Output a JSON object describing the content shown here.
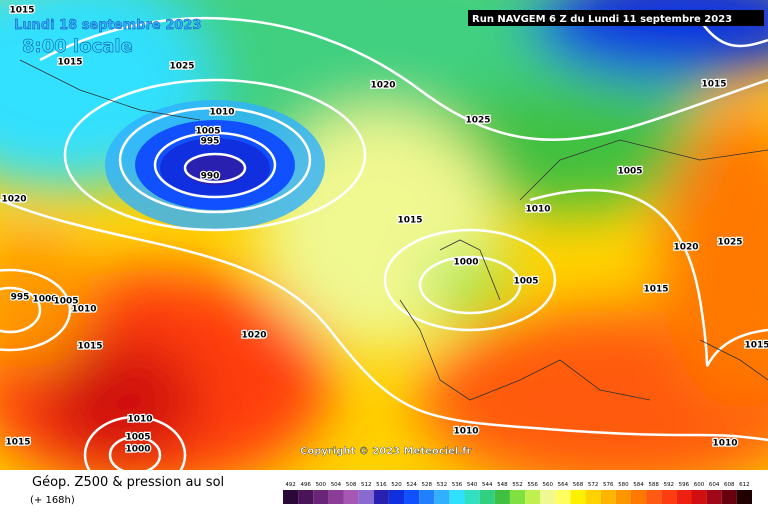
{
  "header": {
    "date": "Lundi 18 septembre 2023",
    "time": "8:00 locale",
    "run": "Run NAVGEM 6 Z du Lundi 11 septembre 2023"
  },
  "copyright": "Copyright © 2023 Meteociel.fr",
  "footer": {
    "title": "Géop. Z500 & pression au sol",
    "lead": "(+ 168h)"
  },
  "legend": {
    "levels": [
      492,
      496,
      500,
      504,
      508,
      512,
      516,
      520,
      524,
      528,
      532,
      536,
      540,
      544,
      548,
      552,
      556,
      560,
      564,
      568,
      572,
      576,
      580,
      584,
      588,
      592,
      596,
      600,
      604,
      608,
      612
    ],
    "colors": [
      "#2a0838",
      "#4a1458",
      "#6a2478",
      "#8a3c98",
      "#a458b4",
      "#8a6ad0",
      "#2a20b0",
      "#1030e0",
      "#1050ff",
      "#2080ff",
      "#30b0ff",
      "#30e0ff",
      "#30e0c0",
      "#30d080",
      "#40c040",
      "#80e040",
      "#c0f050",
      "#f0f890",
      "#ffff60",
      "#fff000",
      "#ffd200",
      "#ffb400",
      "#ff9600",
      "#ff7800",
      "#ff5a10",
      "#ff3c10",
      "#f02010",
      "#d01010",
      "#a00818",
      "#680010",
      "#200000"
    ]
  },
  "isobar_labels": [
    1015,
    1025,
    1015,
    1020,
    1025,
    1010,
    1005,
    995,
    990,
    1015,
    1020,
    1005,
    1010,
    1015,
    1020,
    1025,
    1000,
    1005,
    1015,
    995,
    1000,
    1005,
    1010,
    1015,
    1020,
    1010,
    1005,
    1000,
    1010,
    1015,
    1010,
    1015
  ]
}
